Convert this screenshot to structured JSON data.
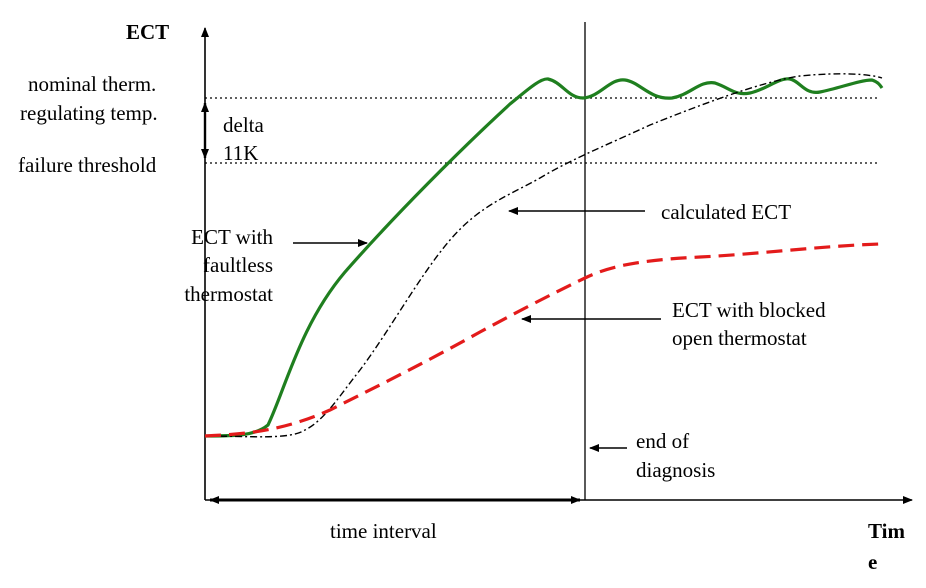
{
  "axes": {
    "y_label": "ECT",
    "x_label_line1": "Tim",
    "x_label_line2": "e"
  },
  "levels": {
    "nominal_line1": "nominal  therm.",
    "nominal_line2": "regulating temp.",
    "delta_line1": "delta",
    "delta_line2": "11K",
    "failure": "failure threshold"
  },
  "curves": {
    "faultless_line1": "ECT with",
    "faultless_line2": "faultless",
    "faultless_line3": "thermostat",
    "calculated": "calculated ECT",
    "blocked_line1": "ECT with blocked",
    "blocked_line2": "open thermostat"
  },
  "markers": {
    "end_line1": "end of",
    "end_line2": "diagnosis",
    "interval": "time interval"
  },
  "colors": {
    "faultless": "#1f7f1f",
    "blocked": "#e31b1b",
    "calculated": "#000000",
    "axis": "#000000"
  }
}
